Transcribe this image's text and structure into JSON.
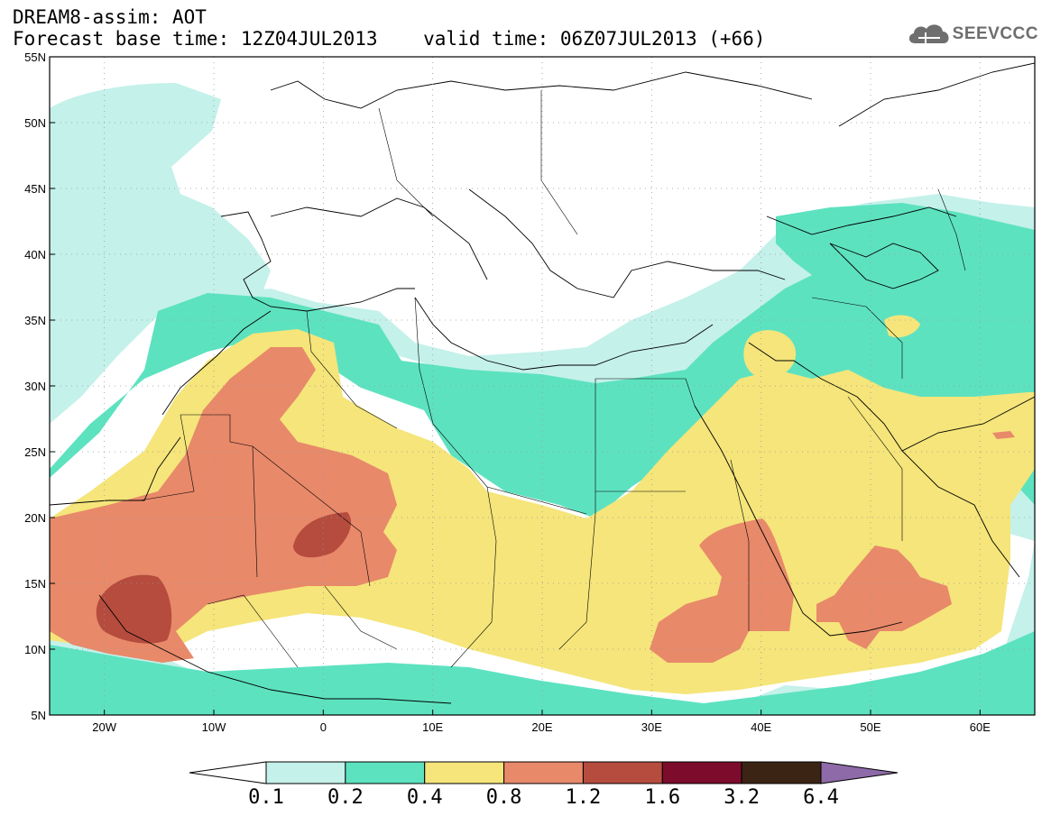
{
  "header": {
    "title": "DREAM8-assim: AOT",
    "subtitle": "Forecast base time: 12Z04JUL2013    valid time: 06Z07JUL2013 (+66)"
  },
  "logo": {
    "text": "SEEVCCC",
    "icon": "cloud-icon"
  },
  "map": {
    "lat_labels": [
      "55N",
      "50N",
      "45N",
      "40N",
      "35N",
      "30N",
      "25N",
      "20N",
      "15N",
      "10N",
      "5N"
    ],
    "lon_labels": [
      "20W",
      "10W",
      "0",
      "10E",
      "20E",
      "30E",
      "40E",
      "50E",
      "60E"
    ],
    "lat_range": [
      5,
      55
    ],
    "lon_range": [
      -25,
      65
    ],
    "grid": true
  },
  "colorbar": {
    "colors": [
      "#ffffff",
      "#c4f1ea",
      "#5de2c0",
      "#f5e57a",
      "#e8896a",
      "#b54c3e",
      "#7d0c2c",
      "#3c2415",
      "#8e6aa8"
    ],
    "labels": [
      "0.1",
      "0.2",
      "0.4",
      "0.8",
      "1.2",
      "1.6",
      "3.2",
      "6.4"
    ]
  }
}
